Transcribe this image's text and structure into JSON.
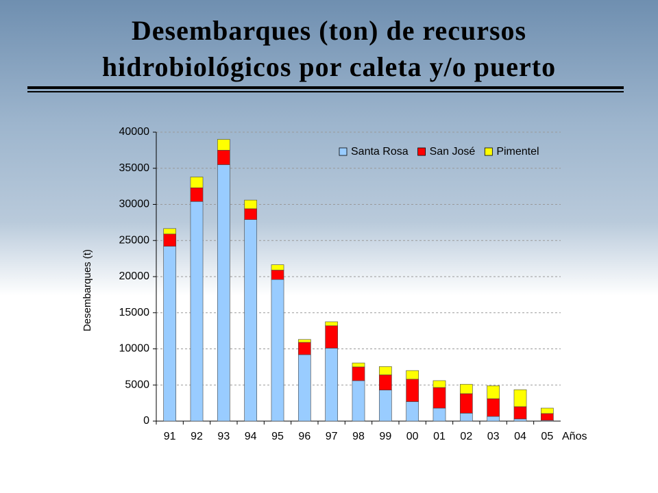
{
  "chart_data": {
    "type": "stacked_bar",
    "title": "Desembarques (ton) de recursos hidrobiológicos por caleta y/o puerto",
    "y_label": "Desembarques (t)",
    "x_label": "Años",
    "categories": [
      "91",
      "92",
      "93",
      "94",
      "95",
      "96",
      "97",
      "98",
      "99",
      "00",
      "01",
      "02",
      "03",
      "04",
      "05"
    ],
    "series": [
      {
        "name": "Santa Rosa",
        "color": "#99ccff",
        "values": [
          24200,
          30400,
          35500,
          27900,
          19600,
          9200,
          10100,
          5600,
          4300,
          2700,
          1800,
          1100,
          650,
          300,
          100
        ]
      },
      {
        "name": "San José",
        "color": "#ff0000",
        "values": [
          1700,
          1900,
          2000,
          1500,
          1300,
          1700,
          3100,
          1900,
          2100,
          3100,
          2850,
          2700,
          2450,
          1700,
          950
        ]
      },
      {
        "name": "Pimentel",
        "color": "#ffff00",
        "values": [
          750,
          1500,
          1500,
          1200,
          750,
          400,
          550,
          550,
          1150,
          1200,
          950,
          1300,
          1800,
          2350,
          750
        ]
      }
    ],
    "ylim": [
      0,
      40000
    ],
    "yticks": [
      0,
      5000,
      10000,
      15000,
      20000,
      25000,
      30000,
      35000,
      40000
    ],
    "grid": true,
    "legend": "top-right"
  }
}
